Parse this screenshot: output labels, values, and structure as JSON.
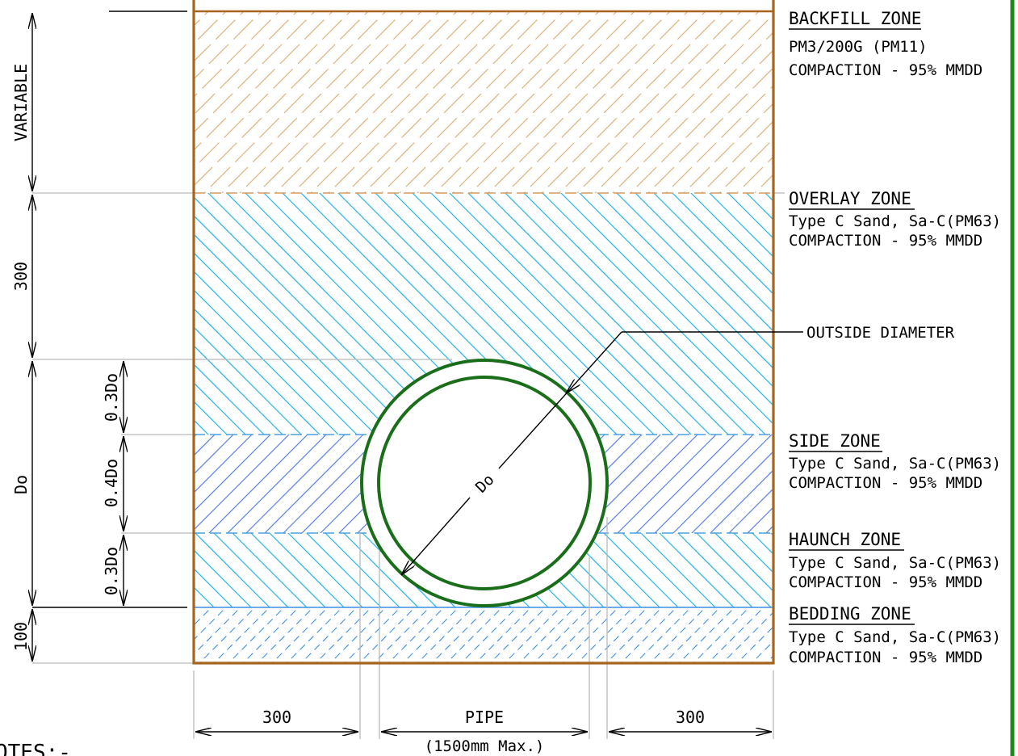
{
  "zones": {
    "backfill": {
      "title": "BACKFILL ZONE",
      "line1": "PM3/200G  (PM11)",
      "line2": "COMPACTION - 95% MMDD"
    },
    "overlay": {
      "title": "OVERLAY ZONE",
      "line1": "Type C Sand, Sa-C(PM63)",
      "line2": "COMPACTION - 95% MMDD"
    },
    "side": {
      "title": "SIDE ZONE",
      "line1": "Type C Sand, Sa-C(PM63)",
      "line2": "COMPACTION - 95% MMDD"
    },
    "haunch": {
      "title": "HAUNCH ZONE",
      "line1": "Type C Sand, Sa-C(PM63)",
      "line2": "COMPACTION - 95% MMDD"
    },
    "bedding": {
      "title": "BEDDING ZONE",
      "line1": "Type C Sand, Sa-C(PM63)",
      "line2": "COMPACTION - 95% MMDD"
    }
  },
  "callouts": {
    "outside_diameter": "OUTSIDE DIAMETER",
    "diameter_symbol": "Do"
  },
  "dimensions": {
    "variable": "VARIABLE",
    "overlay": "300",
    "pipe_zone": "Do",
    "bedding": "100",
    "upper_third": "0.3Do",
    "middle": "0.4Do",
    "lower_third": "0.3Do",
    "left_clearance": "300",
    "pipe": "PIPE",
    "pipe_max": "(1500mm Max.)",
    "right_clearance": "300"
  },
  "notes_heading": "OTES:-",
  "colors": {
    "trench": "#a8641e",
    "backfill_hatch": "#e0b27c",
    "overlay_hatch": "#29b5e6",
    "side_hatch": "#5a82e0",
    "bedding_hatch": "#3f8fe0",
    "pipe": "#1a6e1a",
    "border": "#1d8a1d"
  }
}
